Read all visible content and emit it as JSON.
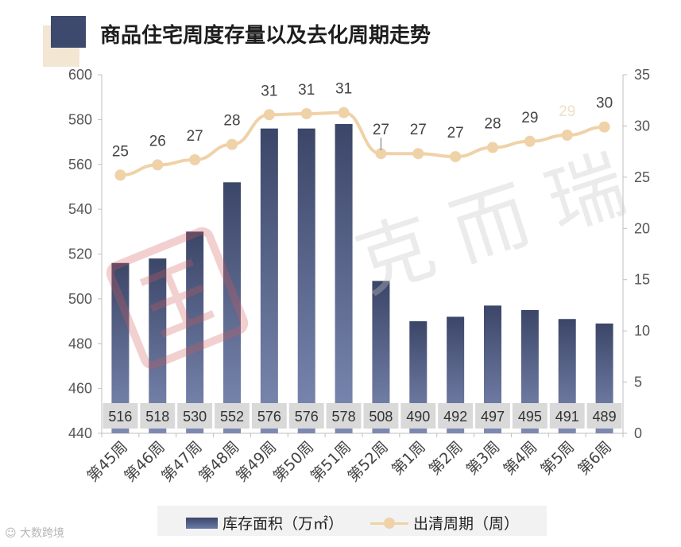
{
  "title": "商品住宅周度存量以及去化周期走势",
  "source_label": "大数跨境",
  "watermark": "克而瑞",
  "colors": {
    "bar_top": "#3b4668",
    "bar_bottom": "#7d8ab3",
    "line": "#efd2a8",
    "title_block": "#3d4a6e"
  },
  "chart_data": {
    "type": "bar+line",
    "categories": [
      "第45周",
      "第46周",
      "第47周",
      "第48周",
      "第49周",
      "第50周",
      "第51周",
      "第52周",
      "第1周",
      "第2周",
      "第3周",
      "第4周",
      "第5周",
      "第6周"
    ],
    "series": [
      {
        "name": "库存面积（万㎡）",
        "type": "bar",
        "axis": "left",
        "values": [
          516,
          518,
          530,
          552,
          576,
          576,
          578,
          508,
          490,
          492,
          497,
          495,
          491,
          489
        ]
      },
      {
        "name": "出清周期（周）",
        "type": "line",
        "axis": "right",
        "values": [
          25,
          26,
          27,
          28,
          31,
          31,
          31,
          27,
          27,
          27,
          28,
          29,
          29,
          30
        ],
        "plot_values": [
          25.2,
          26.2,
          26.7,
          28.2,
          31.1,
          31.2,
          31.3,
          27.3,
          27.3,
          27.0,
          27.9,
          28.5,
          29.1,
          29.9
        ]
      }
    ],
    "y_left": {
      "min": 440,
      "max": 600,
      "ticks": [
        440,
        460,
        480,
        500,
        520,
        540,
        560,
        580,
        600
      ]
    },
    "y_right": {
      "min": 0,
      "max": 35,
      "ticks": [
        0,
        5,
        10,
        15,
        20,
        25,
        30,
        35
      ]
    },
    "legend_position": "bottom",
    "grid": false
  },
  "legend": {
    "bar_label": "库存面积（万㎡）",
    "line_label": "出清周期（周）"
  }
}
